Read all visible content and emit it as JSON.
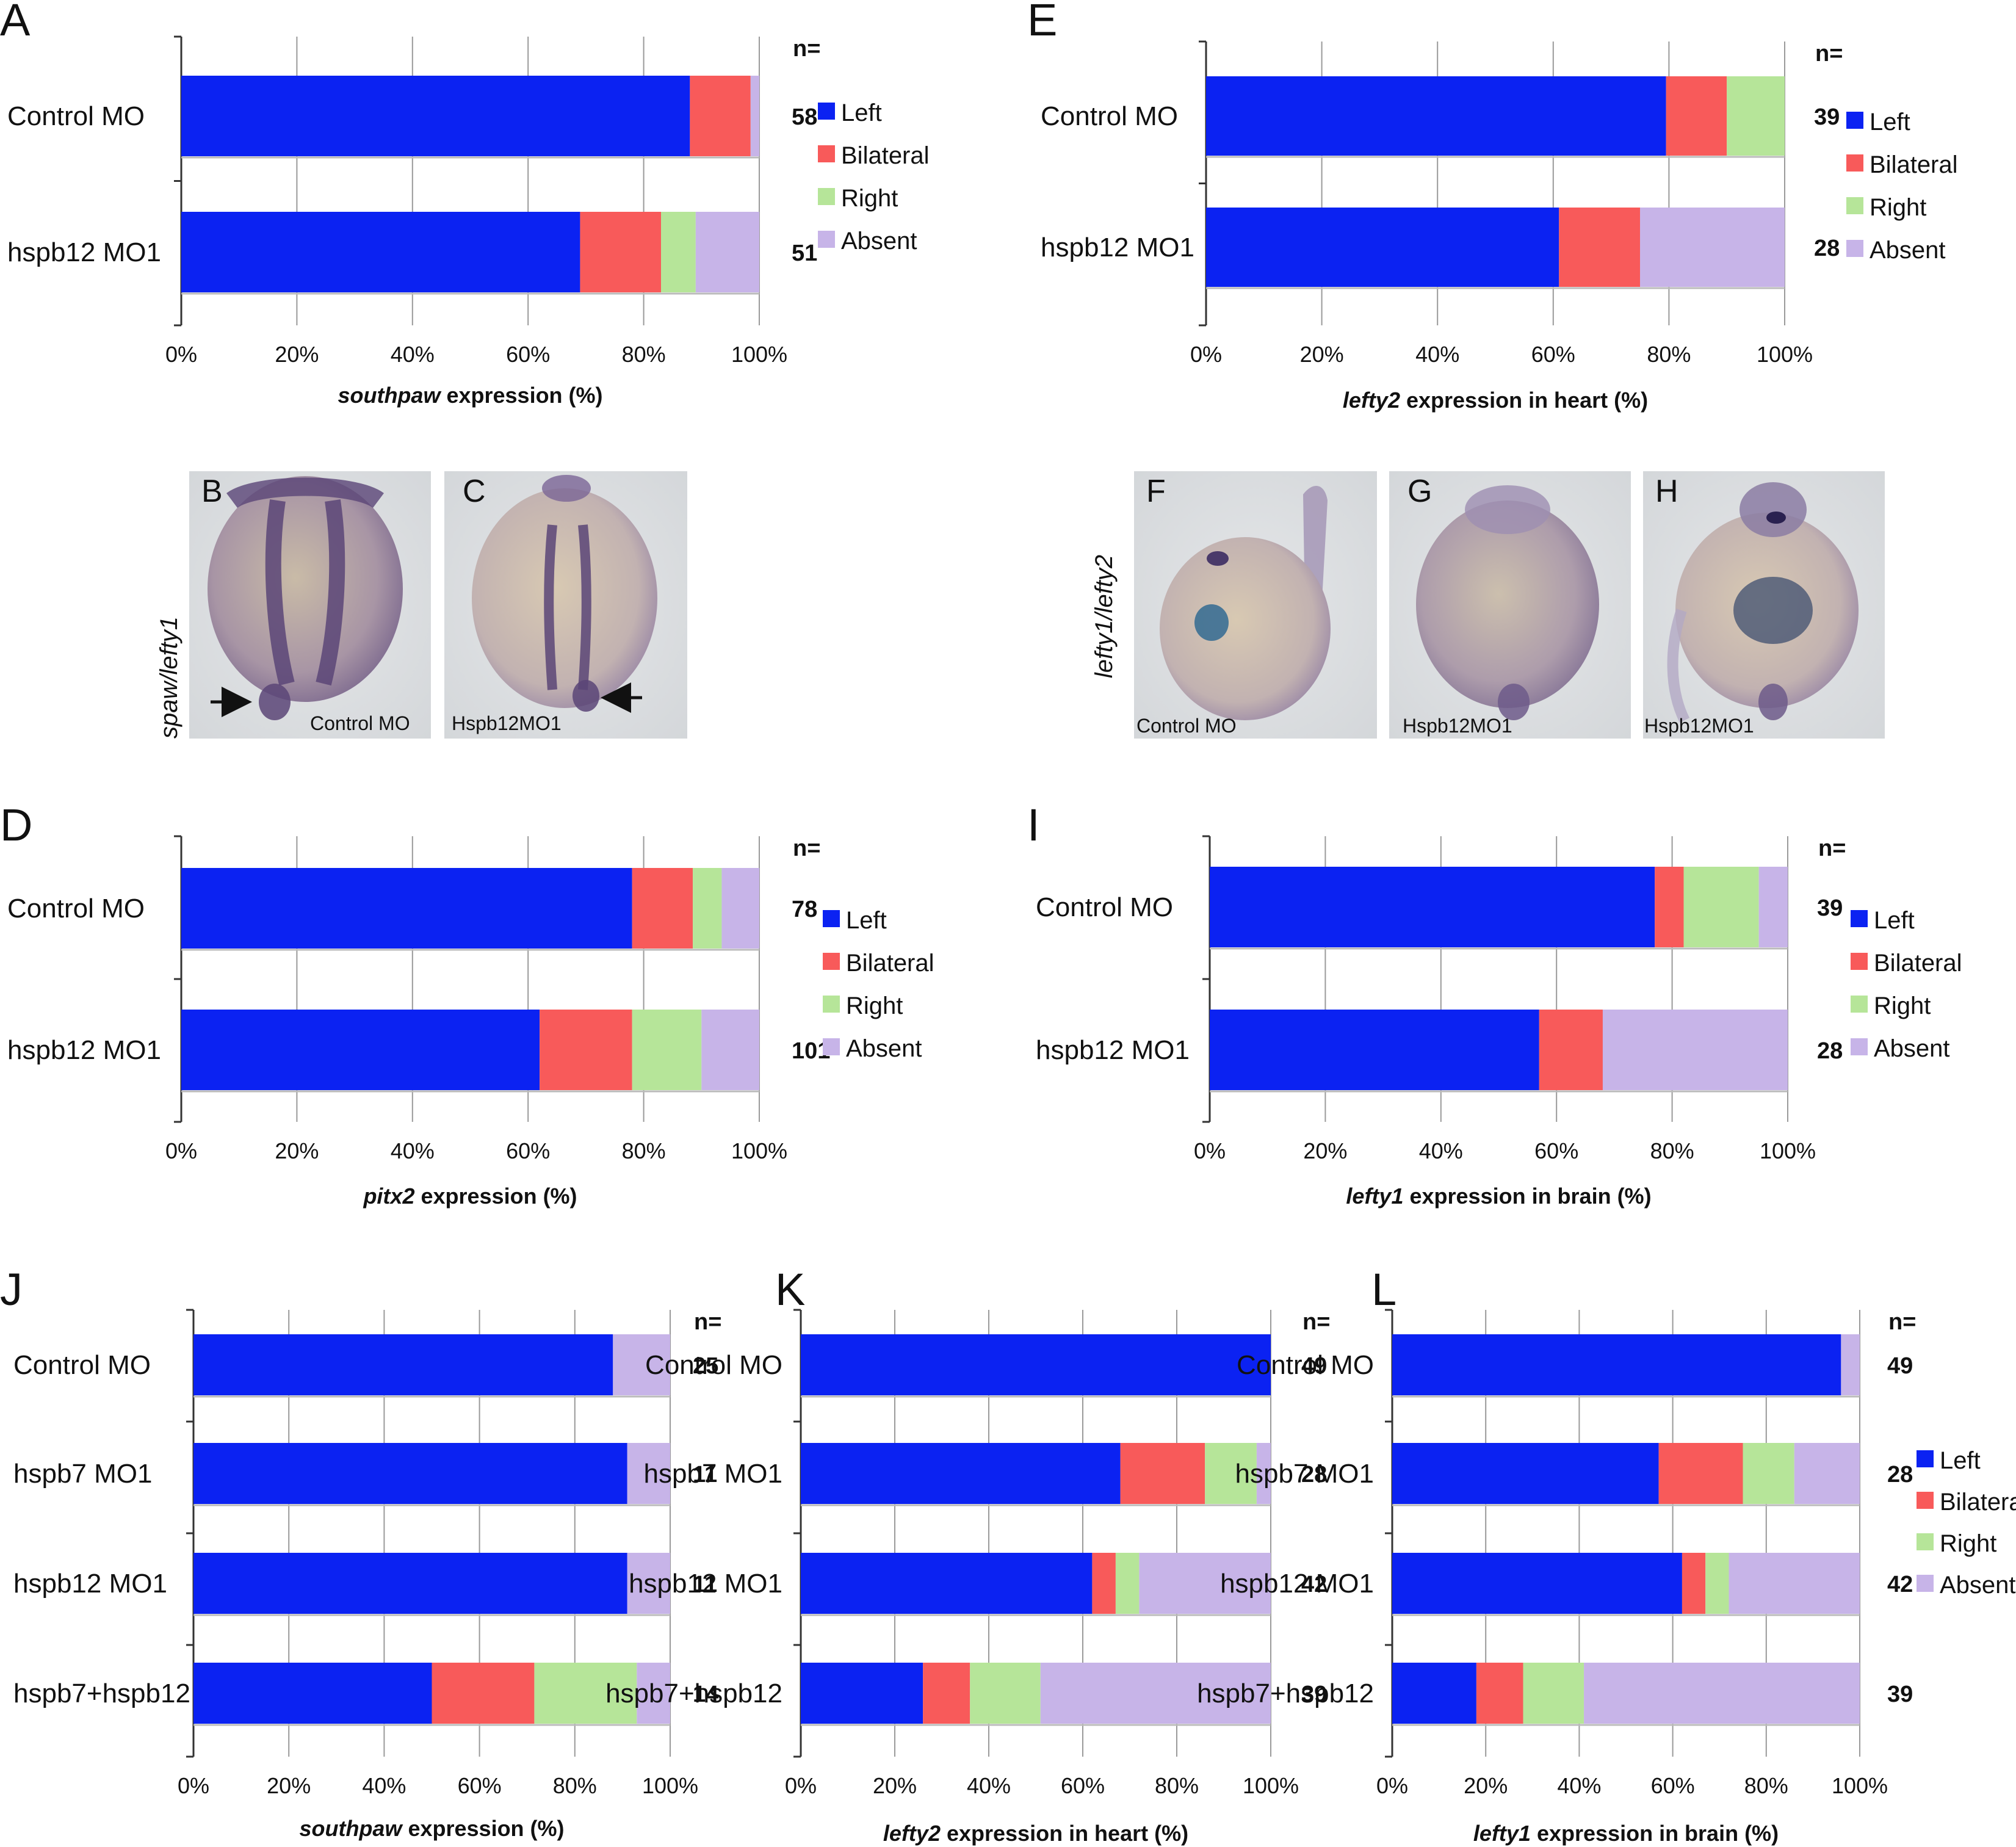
{
  "colors": {
    "Left": "#0b22f2",
    "Bilateral": "#f85a5a",
    "Right": "#b6e599",
    "Absent": "#c7b4e8"
  },
  "legend_items": [
    "Left",
    "Bilateral",
    "Right",
    "Absent"
  ],
  "panels": {
    "B": {
      "letter": "B",
      "caption": "Control MO"
    },
    "C": {
      "letter": "C",
      "caption": "Hspb12MO1"
    },
    "F": {
      "letter": "F",
      "caption": "Control MO"
    },
    "G": {
      "letter": "G",
      "caption": "Hspb12MO1"
    },
    "H": {
      "letter": "H",
      "caption": "Hspb12MO1"
    },
    "side_left": "spaw/lefty1",
    "side_right": "lefty1/lefty2"
  },
  "chart_data": [
    {
      "panel": "A",
      "type": "bar",
      "orientation": "horizontal",
      "stacked": true,
      "categories": [
        "Control MO",
        "hspb12 MO1"
      ],
      "n_header": "n=",
      "n_values": [
        "58",
        "51"
      ],
      "series": [
        {
          "name": "Left",
          "values": [
            88,
            69
          ]
        },
        {
          "name": "Bilateral",
          "values": [
            10.5,
            14
          ]
        },
        {
          "name": "Right",
          "values": [
            0,
            6
          ]
        },
        {
          "name": "Absent",
          "values": [
            1.5,
            11
          ]
        }
      ],
      "xticks": [
        "0%",
        "20%",
        "40%",
        "60%",
        "80%",
        "100%"
      ],
      "xlim": [
        0,
        100
      ],
      "xlabel_italic": "southpaw",
      "xlabel_rest": " expression (%)",
      "grid": true,
      "legend": "right"
    },
    {
      "panel": "E",
      "type": "bar",
      "orientation": "horizontal",
      "stacked": true,
      "categories": [
        "Control MO",
        "hspb12 MO1"
      ],
      "n_header": "n=",
      "n_values": [
        "39",
        "28"
      ],
      "series": [
        {
          "name": "Left",
          "values": [
            79.5,
            61
          ]
        },
        {
          "name": "Bilateral",
          "values": [
            10.5,
            14
          ]
        },
        {
          "name": "Right",
          "values": [
            10,
            0
          ]
        },
        {
          "name": "Absent",
          "values": [
            0,
            25
          ]
        }
      ],
      "xticks": [
        "0%",
        "20%",
        "40%",
        "60%",
        "80%",
        "100%"
      ],
      "xlim": [
        0,
        100
      ],
      "xlabel_italic": "lefty2",
      "xlabel_rest": " expression in heart (%)",
      "grid": true,
      "legend": "right"
    },
    {
      "panel": "D",
      "type": "bar",
      "orientation": "horizontal",
      "stacked": true,
      "categories": [
        "Control MO",
        "hspb12 MO1"
      ],
      "n_header": "n=",
      "n_values": [
        "78",
        "101"
      ],
      "series": [
        {
          "name": "Left",
          "values": [
            78,
            62
          ]
        },
        {
          "name": "Bilateral",
          "values": [
            10.5,
            16
          ]
        },
        {
          "name": "Right",
          "values": [
            5,
            12
          ]
        },
        {
          "name": "Absent",
          "values": [
            6.5,
            10
          ]
        }
      ],
      "xticks": [
        "0%",
        "20%",
        "40%",
        "60%",
        "80%",
        "100%"
      ],
      "xlim": [
        0,
        100
      ],
      "xlabel_italic": "pitx2",
      "xlabel_rest": " expression (%)",
      "grid": true,
      "legend": "right"
    },
    {
      "panel": "I",
      "type": "bar",
      "orientation": "horizontal",
      "stacked": true,
      "categories": [
        "Control MO",
        "hspb12 MO1"
      ],
      "n_header": "n=",
      "n_values": [
        "39",
        "28"
      ],
      "series": [
        {
          "name": "Left",
          "values": [
            77,
            57
          ]
        },
        {
          "name": "Bilateral",
          "values": [
            5,
            11
          ]
        },
        {
          "name": "Right",
          "values": [
            13,
            0
          ]
        },
        {
          "name": "Absent",
          "values": [
            5,
            32
          ]
        }
      ],
      "xticks": [
        "0%",
        "20%",
        "40%",
        "60%",
        "80%",
        "100%"
      ],
      "xlim": [
        0,
        100
      ],
      "xlabel_italic": "lefty1",
      "xlabel_rest": " expression in brain (%)",
      "grid": true,
      "legend": "right"
    },
    {
      "panel": "J",
      "type": "bar",
      "orientation": "horizontal",
      "stacked": true,
      "categories": [
        "Control MO",
        "hspb7 MO1",
        "hspb12 MO1",
        "hspb7+hspb12"
      ],
      "n_header": "n=",
      "n_values": [
        "25",
        "11",
        "11",
        "14"
      ],
      "series": [
        {
          "name": "Left",
          "values": [
            88,
            91,
            91,
            50
          ]
        },
        {
          "name": "Bilateral",
          "values": [
            0,
            0,
            0,
            21.5
          ]
        },
        {
          "name": "Right",
          "values": [
            0,
            0,
            0,
            21.5
          ]
        },
        {
          "name": "Absent",
          "values": [
            12,
            9,
            9,
            7
          ]
        }
      ],
      "xticks": [
        "0%",
        "20%",
        "40%",
        "60%",
        "80%",
        "100%"
      ],
      "xlim": [
        0,
        100
      ],
      "xlabel_italic": "southpaw",
      "xlabel_rest": " expression (%)",
      "grid": true,
      "legend": "none"
    },
    {
      "panel": "K",
      "type": "bar",
      "orientation": "horizontal",
      "stacked": true,
      "categories": [
        "Control MO",
        "hspb7 MO1",
        "hspb12 MO1",
        "hspb7+hspb12"
      ],
      "n_header": "n=",
      "n_values": [
        "49",
        "28",
        "42",
        "39"
      ],
      "series": [
        {
          "name": "Left",
          "values": [
            100,
            68,
            62,
            26
          ]
        },
        {
          "name": "Bilateral",
          "values": [
            0,
            18,
            5,
            10
          ]
        },
        {
          "name": "Right",
          "values": [
            0,
            11,
            5,
            15
          ]
        },
        {
          "name": "Absent",
          "values": [
            0,
            3,
            28,
            49
          ]
        }
      ],
      "xticks": [
        "0%",
        "20%",
        "40%",
        "60%",
        "80%",
        "100%"
      ],
      "xlim": [
        0,
        100
      ],
      "xlabel_italic": "lefty2",
      "xlabel_rest": " expression in heart (%)",
      "grid": true,
      "legend": "none"
    },
    {
      "panel": "L",
      "type": "bar",
      "orientation": "horizontal",
      "stacked": true,
      "categories": [
        "Control MO",
        "hspb7 MO1",
        "hspb12 MO1",
        "hspb7+hspb12"
      ],
      "n_header": "n=",
      "n_values": [
        "49",
        "28",
        "42",
        "39"
      ],
      "series": [
        {
          "name": "Left",
          "values": [
            96,
            57,
            62,
            18
          ]
        },
        {
          "name": "Bilateral",
          "values": [
            0,
            18,
            5,
            10
          ]
        },
        {
          "name": "Right",
          "values": [
            0,
            11,
            5,
            13
          ]
        },
        {
          "name": "Absent",
          "values": [
            4,
            14,
            28,
            59
          ]
        }
      ],
      "xticks": [
        "0%",
        "20%",
        "40%",
        "60%",
        "80%",
        "100%"
      ],
      "xlim": [
        0,
        100
      ],
      "xlabel_italic": "lefty1",
      "xlabel_rest": " expression in brain (%)",
      "grid": true,
      "legend": "right"
    }
  ]
}
